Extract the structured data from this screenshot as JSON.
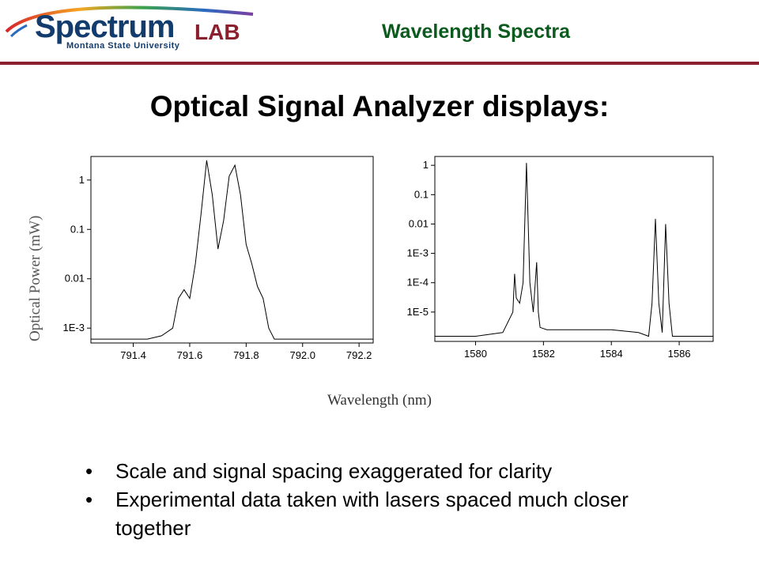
{
  "header": {
    "logo_main": "Spectrum",
    "logo_lab": "LAB",
    "logo_subtitle": "Montana State University",
    "title": "Wavelength Spectra",
    "accent_color": "#8a1f2e",
    "title_color": "#0b5a1e",
    "logo_color": "#123b6e"
  },
  "slide": {
    "title": "Optical Signal Analyzer displays:",
    "bullets": [
      "Scale and signal spacing exaggerated for clarity",
      "Experimental data taken with lasers spaced much closer together"
    ]
  },
  "shared_axes": {
    "ylabel": "Optical Power (mW)",
    "xlabel": "Wavelength (nm)"
  },
  "chart_data": [
    {
      "type": "line",
      "yscale": "log",
      "xlim": [
        791.25,
        792.25
      ],
      "ylim": [
        0.0005,
        3
      ],
      "xticks": [
        791.4,
        791.6,
        791.8,
        792.0,
        792.2
      ],
      "xticklabels": [
        "791.4",
        "791.6",
        "791.8",
        "792.0",
        "792.2"
      ],
      "yticks": [
        1,
        0.1,
        0.01,
        0.001
      ],
      "yticklabels": [
        "1",
        "0.1",
        "0.01",
        "1E-3"
      ],
      "grid": false,
      "series": [
        {
          "x": [
            791.25,
            791.3,
            791.35,
            791.4,
            791.45,
            791.5,
            791.54,
            791.56,
            791.58,
            791.6,
            791.62,
            791.64,
            791.66,
            791.68,
            791.7,
            791.72,
            791.74,
            791.76,
            791.78,
            791.8,
            791.82,
            791.84,
            791.86,
            791.88,
            791.9,
            792.0,
            792.1,
            792.25
          ],
          "y": [
            0.0006,
            0.0006,
            0.0006,
            0.0006,
            0.0006,
            0.0007,
            0.001,
            0.004,
            0.006,
            0.004,
            0.02,
            0.2,
            2.5,
            0.5,
            0.04,
            0.15,
            1.2,
            2.0,
            0.5,
            0.05,
            0.02,
            0.007,
            0.004,
            0.001,
            0.0006,
            0.0006,
            0.0006,
            0.0006
          ]
        }
      ]
    },
    {
      "type": "line",
      "yscale": "log",
      "xlim": [
        1578.8,
        1587
      ],
      "ylim": [
        1e-06,
        2
      ],
      "xticks": [
        1580,
        1582,
        1584,
        1586
      ],
      "xticklabels": [
        "1580",
        "1582",
        "1584",
        "1586"
      ],
      "yticks": [
        1,
        0.1,
        0.01,
        0.001,
        0.0001,
        1e-05
      ],
      "yticklabels": [
        "1",
        "0.1",
        "0.01",
        "1E-3",
        "1E-4",
        "1E-5"
      ],
      "grid": false,
      "series": [
        {
          "x": [
            1578.8,
            1580,
            1580.8,
            1581.1,
            1581.15,
            1581.2,
            1581.3,
            1581.4,
            1581.5,
            1581.6,
            1581.7,
            1581.8,
            1581.85,
            1581.9,
            1582.1,
            1583,
            1584,
            1584.8,
            1585.1,
            1585.2,
            1585.3,
            1585.4,
            1585.5,
            1585.6,
            1585.7,
            1585.8,
            1586,
            1587
          ],
          "y": [
            1.5e-06,
            1.5e-06,
            2e-06,
            1e-05,
            0.0002,
            3e-05,
            2e-05,
            0.0001,
            1.2,
            0.0001,
            1e-05,
            0.0005,
            1e-05,
            3e-06,
            2.5e-06,
            2.5e-06,
            2.5e-06,
            2e-06,
            1.5e-06,
            2e-05,
            0.015,
            2e-05,
            2e-06,
            0.01,
            2e-05,
            1.5e-06,
            1.5e-06,
            1.5e-06
          ]
        }
      ]
    }
  ]
}
